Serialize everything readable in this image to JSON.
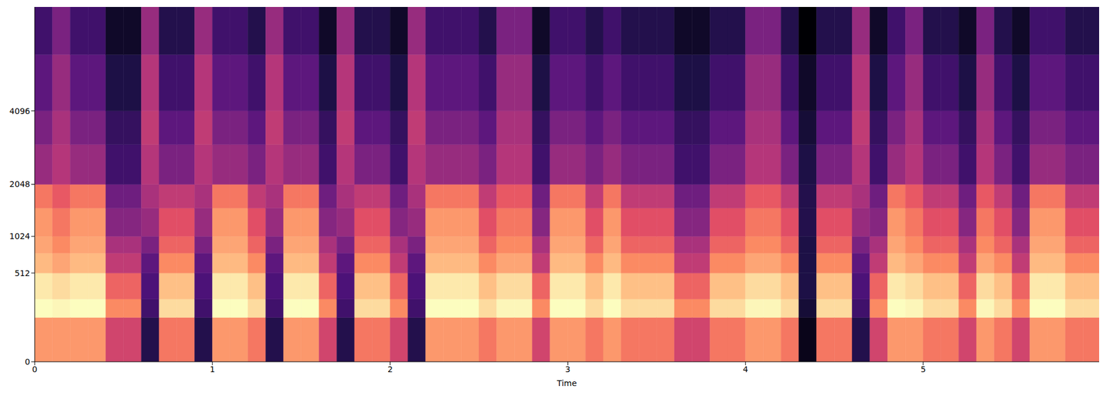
{
  "chart_data": {
    "type": "heatmap",
    "x_label": "Time",
    "xlim": [
      0,
      5.99
    ],
    "xticks": [
      0,
      1,
      2,
      3,
      4,
      5
    ],
    "ylim": [
      0,
      8192
    ],
    "yticks": [
      0,
      512,
      1024,
      2048,
      4096
    ],
    "x_edges": [
      0,
      0.1,
      0.2,
      0.3,
      0.4,
      0.5,
      0.6,
      0.7,
      0.8,
      0.9,
      1.0,
      1.1,
      1.2,
      1.3,
      1.4,
      1.5,
      1.6,
      1.7,
      1.8,
      1.9,
      2.0,
      2.1,
      2.2,
      2.3,
      2.4,
      2.5,
      2.6,
      2.7,
      2.8,
      2.9,
      3.0,
      3.1,
      3.2,
      3.3,
      3.4,
      3.5,
      3.6,
      3.7,
      3.8,
      3.9,
      4.0,
      4.1,
      4.2,
      4.3,
      4.4,
      4.5,
      4.6,
      4.7,
      4.8,
      4.9,
      5.0,
      5.1,
      5.2,
      5.3,
      5.4,
      5.5,
      5.6,
      5.7,
      5.8,
      5.9,
      5.99
    ],
    "y_edges": [
      0,
      128,
      256,
      512,
      768,
      1024,
      1536,
      2048,
      3072,
      4096,
      6144,
      8192
    ],
    "values": [
      [
        -20,
        -5,
        -8,
        -15,
        -18,
        -20,
        -25,
        -45,
        -50,
        -55,
        -60
      ],
      [
        -20,
        -6,
        -10,
        -18,
        -22,
        -25,
        -30,
        -40,
        -42,
        -45,
        -50
      ],
      [
        -20,
        -5,
        -8,
        -15,
        -18,
        -20,
        -25,
        -45,
        -50,
        -55,
        -60
      ],
      [
        -20,
        -5,
        -8,
        -15,
        -18,
        -20,
        -25,
        -45,
        -50,
        -55,
        -60
      ],
      [
        -35,
        -22,
        -28,
        -38,
        -42,
        -48,
        -52,
        -60,
        -62,
        -66,
        -70
      ],
      [
        -35,
        -22,
        -28,
        -38,
        -42,
        -48,
        -52,
        -60,
        -62,
        -66,
        -70
      ],
      [
        -65,
        -60,
        -58,
        -55,
        -50,
        -45,
        -42,
        -40,
        -38,
        -40,
        -45
      ],
      [
        -25,
        -10,
        -14,
        -22,
        -28,
        -32,
        -38,
        -50,
        -55,
        -60,
        -65
      ],
      [
        -25,
        -10,
        -14,
        -22,
        -28,
        -32,
        -38,
        -50,
        -55,
        -60,
        -65
      ],
      [
        -65,
        -60,
        -58,
        -55,
        -50,
        -45,
        -42,
        -40,
        -38,
        -40,
        -45
      ],
      [
        -20,
        -5,
        -8,
        -15,
        -18,
        -20,
        -25,
        -45,
        -50,
        -55,
        -60
      ],
      [
        -20,
        -5,
        -8,
        -15,
        -18,
        -20,
        -25,
        -45,
        -50,
        -55,
        -60
      ],
      [
        -25,
        -10,
        -14,
        -22,
        -28,
        -32,
        -38,
        -50,
        -55,
        -60,
        -65
      ],
      [
        -65,
        -60,
        -58,
        -55,
        -50,
        -45,
        -42,
        -40,
        -38,
        -40,
        -45
      ],
      [
        -20,
        -5,
        -8,
        -15,
        -18,
        -20,
        -25,
        -45,
        -50,
        -55,
        -60
      ],
      [
        -20,
        -5,
        -8,
        -15,
        -18,
        -20,
        -25,
        -45,
        -50,
        -55,
        -60
      ],
      [
        -35,
        -22,
        -28,
        -38,
        -42,
        -48,
        -52,
        -60,
        -62,
        -66,
        -70
      ],
      [
        -65,
        -60,
        -58,
        -55,
        -50,
        -45,
        -42,
        -40,
        -38,
        -40,
        -45
      ],
      [
        -25,
        -10,
        -14,
        -22,
        -28,
        -32,
        -38,
        -50,
        -55,
        -60,
        -65
      ],
      [
        -25,
        -10,
        -14,
        -22,
        -28,
        -32,
        -38,
        -50,
        -55,
        -60,
        -65
      ],
      [
        -35,
        -22,
        -28,
        -38,
        -42,
        -48,
        -52,
        -60,
        -62,
        -66,
        -70
      ],
      [
        -65,
        -60,
        -58,
        -55,
        -50,
        -45,
        -42,
        -40,
        -38,
        -40,
        -45
      ],
      [
        -20,
        -5,
        -8,
        -15,
        -18,
        -20,
        -25,
        -45,
        -50,
        -55,
        -60
      ],
      [
        -20,
        -5,
        -8,
        -15,
        -18,
        -20,
        -25,
        -45,
        -50,
        -55,
        -60
      ],
      [
        -20,
        -5,
        -8,
        -15,
        -18,
        -20,
        -25,
        -45,
        -50,
        -55,
        -60
      ],
      [
        -25,
        -10,
        -14,
        -22,
        -28,
        -32,
        -38,
        -50,
        -55,
        -60,
        -65
      ],
      [
        -20,
        -6,
        -10,
        -18,
        -22,
        -25,
        -30,
        -40,
        -42,
        -45,
        -50
      ],
      [
        -20,
        -6,
        -10,
        -18,
        -22,
        -25,
        -30,
        -40,
        -42,
        -45,
        -50
      ],
      [
        -35,
        -22,
        -28,
        -38,
        -42,
        -48,
        -52,
        -60,
        -62,
        -66,
        -70
      ],
      [
        -20,
        -5,
        -8,
        -15,
        -18,
        -20,
        -25,
        -45,
        -50,
        -55,
        -60
      ],
      [
        -20,
        -5,
        -8,
        -15,
        -18,
        -20,
        -25,
        -45,
        -50,
        -55,
        -60
      ],
      [
        -25,
        -10,
        -14,
        -22,
        -28,
        -32,
        -38,
        -50,
        -55,
        -60,
        -65
      ],
      [
        -20,
        -5,
        -8,
        -15,
        -18,
        -20,
        -25,
        -45,
        -50,
        -55,
        -60
      ],
      [
        -25,
        -10,
        -14,
        -22,
        -28,
        -32,
        -38,
        -50,
        -55,
        -60,
        -65
      ],
      [
        -25,
        -10,
        -14,
        -22,
        -28,
        -32,
        -38,
        -50,
        -55,
        -60,
        -65
      ],
      [
        -25,
        -10,
        -14,
        -22,
        -28,
        -32,
        -38,
        -50,
        -55,
        -60,
        -65
      ],
      [
        -35,
        -22,
        -28,
        -38,
        -42,
        -48,
        -52,
        -60,
        -62,
        -66,
        -70
      ],
      [
        -35,
        -22,
        -28,
        -38,
        -42,
        -48,
        -52,
        -60,
        -62,
        -66,
        -70
      ],
      [
        -25,
        -10,
        -14,
        -22,
        -28,
        -32,
        -38,
        -50,
        -55,
        -60,
        -65
      ],
      [
        -25,
        -10,
        -14,
        -22,
        -28,
        -32,
        -38,
        -50,
        -55,
        -60,
        -65
      ],
      [
        -20,
        -6,
        -10,
        -18,
        -22,
        -25,
        -30,
        -40,
        -42,
        -45,
        -50
      ],
      [
        -20,
        -6,
        -10,
        -18,
        -22,
        -25,
        -30,
        -40,
        -42,
        -45,
        -50
      ],
      [
        -25,
        -10,
        -14,
        -22,
        -28,
        -32,
        -38,
        -50,
        -55,
        -60,
        -65
      ],
      [
        -72,
        -68,
        -66,
        -66,
        -66,
        -65,
        -65,
        -66,
        -68,
        -70,
        -75
      ],
      [
        -25,
        -10,
        -14,
        -22,
        -28,
        -32,
        -38,
        -50,
        -55,
        -60,
        -65
      ],
      [
        -25,
        -10,
        -14,
        -22,
        -28,
        -32,
        -38,
        -50,
        -55,
        -60,
        -65
      ],
      [
        -65,
        -60,
        -58,
        -55,
        -50,
        -45,
        -42,
        -40,
        -38,
        -40,
        -45
      ],
      [
        -35,
        -22,
        -28,
        -38,
        -42,
        -48,
        -52,
        -60,
        -62,
        -66,
        -70
      ],
      [
        -20,
        -5,
        -8,
        -15,
        -18,
        -20,
        -25,
        -45,
        -50,
        -55,
        -60
      ],
      [
        -20,
        -6,
        -10,
        -18,
        -22,
        -25,
        -30,
        -40,
        -42,
        -45,
        -50
      ],
      [
        -25,
        -10,
        -14,
        -22,
        -28,
        -32,
        -38,
        -50,
        -55,
        -60,
        -65
      ],
      [
        -25,
        -10,
        -14,
        -22,
        -28,
        -32,
        -38,
        -50,
        -55,
        -60,
        -65
      ],
      [
        -35,
        -22,
        -28,
        -38,
        -42,
        -48,
        -52,
        -60,
        -62,
        -66,
        -70
      ],
      [
        -20,
        -6,
        -10,
        -18,
        -22,
        -25,
        -30,
        -40,
        -42,
        -45,
        -50
      ],
      [
        -25,
        -10,
        -14,
        -22,
        -28,
        -32,
        -38,
        -50,
        -55,
        -60,
        -65
      ],
      [
        -35,
        -22,
        -28,
        -38,
        -42,
        -48,
        -52,
        -60,
        -62,
        -66,
        -70
      ],
      [
        -20,
        -5,
        -8,
        -15,
        -18,
        -20,
        -25,
        -45,
        -50,
        -55,
        -60
      ],
      [
        -20,
        -5,
        -8,
        -15,
        -18,
        -20,
        -25,
        -45,
        -50,
        -55,
        -60
      ],
      [
        -25,
        -10,
        -14,
        -22,
        -28,
        -32,
        -38,
        -50,
        -55,
        -60,
        -65
      ],
      [
        -25,
        -10,
        -14,
        -22,
        -28,
        -32,
        -38,
        -50,
        -55,
        -60,
        -65
      ]
    ]
  }
}
